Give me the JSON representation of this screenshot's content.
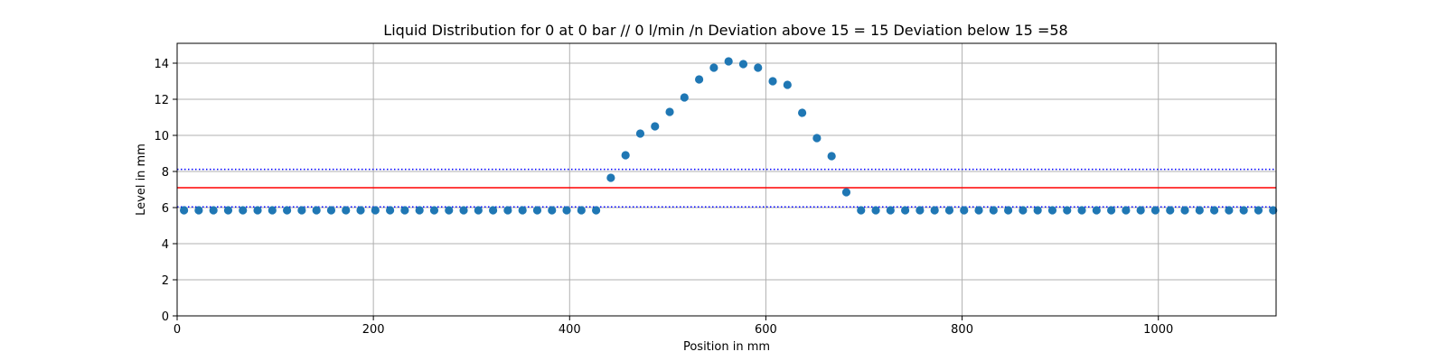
{
  "chart_data": {
    "type": "scatter",
    "title": "Liquid Distribution for 0 at 0 bar // 0 l/min /n Deviation above 15 = 15 Deviation below 15 =58",
    "xlabel": "Position in mm",
    "ylabel": "Level in mm",
    "xlim": [
      0,
      1120
    ],
    "ylim": [
      0,
      15.1
    ],
    "xticks": [
      0,
      200,
      400,
      600,
      800,
      1000
    ],
    "yticks": [
      0,
      2,
      4,
      6,
      8,
      10,
      12,
      14
    ],
    "grid": true,
    "point_color": "#1f77b4",
    "series": [
      {
        "name": "Level",
        "x": [
          7,
          22,
          37,
          52,
          67,
          82,
          97,
          112,
          127,
          142,
          157,
          172,
          187,
          202,
          217,
          232,
          247,
          262,
          277,
          292,
          307,
          322,
          337,
          352,
          367,
          382,
          397,
          412,
          427,
          442,
          457,
          472,
          487,
          502,
          517,
          532,
          547,
          562,
          577,
          592,
          607,
          622,
          637,
          652,
          667,
          682,
          697,
          712,
          727,
          742,
          757,
          772,
          787,
          802,
          817,
          832,
          847,
          862,
          877,
          892,
          907,
          922,
          937,
          952,
          967,
          982,
          997,
          1012,
          1027,
          1042,
          1057,
          1072,
          1087,
          1102,
          1117
        ],
        "y": [
          5.85,
          5.85,
          5.85,
          5.85,
          5.85,
          5.85,
          5.85,
          5.85,
          5.85,
          5.85,
          5.85,
          5.85,
          5.85,
          5.85,
          5.85,
          5.85,
          5.85,
          5.85,
          5.85,
          5.85,
          5.85,
          5.85,
          5.85,
          5.85,
          5.85,
          5.85,
          5.85,
          5.85,
          5.85,
          7.65,
          8.9,
          10.1,
          10.5,
          11.3,
          12.1,
          13.1,
          13.75,
          14.1,
          13.95,
          13.75,
          13.0,
          12.8,
          11.25,
          9.85,
          8.85,
          6.85,
          5.85,
          5.85,
          5.85,
          5.85,
          5.85,
          5.85,
          5.85,
          5.85,
          5.85,
          5.85,
          5.85,
          5.85,
          5.85,
          5.85,
          5.85,
          5.85,
          5.85,
          5.85,
          5.85,
          5.85,
          5.85,
          5.85,
          5.85,
          5.85,
          5.85,
          5.85,
          5.85,
          5.85,
          5.85
        ]
      }
    ],
    "hlines": [
      {
        "name": "mean",
        "y": 7.1,
        "color": "#ff0000",
        "style": "solid"
      },
      {
        "name": "upper-limit",
        "y": 8.12,
        "color": "#0000ff",
        "style": "dotted"
      },
      {
        "name": "lower-limit",
        "y": 6.04,
        "color": "#0000ff",
        "style": "dotted"
      }
    ]
  }
}
